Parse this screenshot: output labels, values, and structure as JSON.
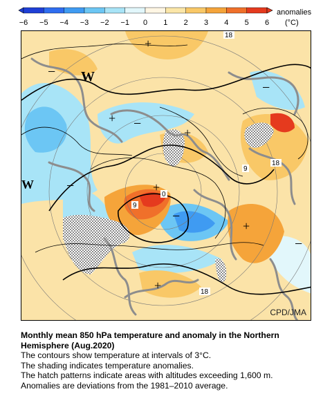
{
  "colorbar": {
    "ticks": [
      "-6",
      "-5",
      "-4",
      "-3",
      "-2",
      "-1",
      "0",
      "1",
      "2",
      "3",
      "4",
      "5",
      "6"
    ],
    "colors": [
      "#1f3fd6",
      "#2f6df0",
      "#3f9bf2",
      "#6cc6f4",
      "#a8e4f7",
      "#e2f7fb",
      "#fff6e4",
      "#fbe6a8",
      "#f9c867",
      "#f5a43a",
      "#f0702a",
      "#e53a1e"
    ],
    "label": "anomalies",
    "unit": "(°C)"
  },
  "map": {
    "contour_labels": [
      "18",
      "18",
      "9",
      "9",
      "0",
      "18"
    ],
    "markers": [
      "W",
      "W",
      "+",
      "+",
      "+",
      "+",
      "+",
      "+",
      "−",
      "−",
      "−",
      "−",
      "−",
      "−"
    ],
    "credit": "CPD/JMA"
  },
  "caption": {
    "title": "Monthly mean 850 hPa temperature and anomaly in the Northern Hemisphere (Aug.2020)",
    "line1": "The contours show temperature at intervals of 3°C.",
    "line2": "The shading indicates temperature anomalies.",
    "line3": "The hatch patterns indicate areas with altitudes exceeding 1,600 m.",
    "line4": "Anomalies are deviations from the 1981–2010 average."
  }
}
